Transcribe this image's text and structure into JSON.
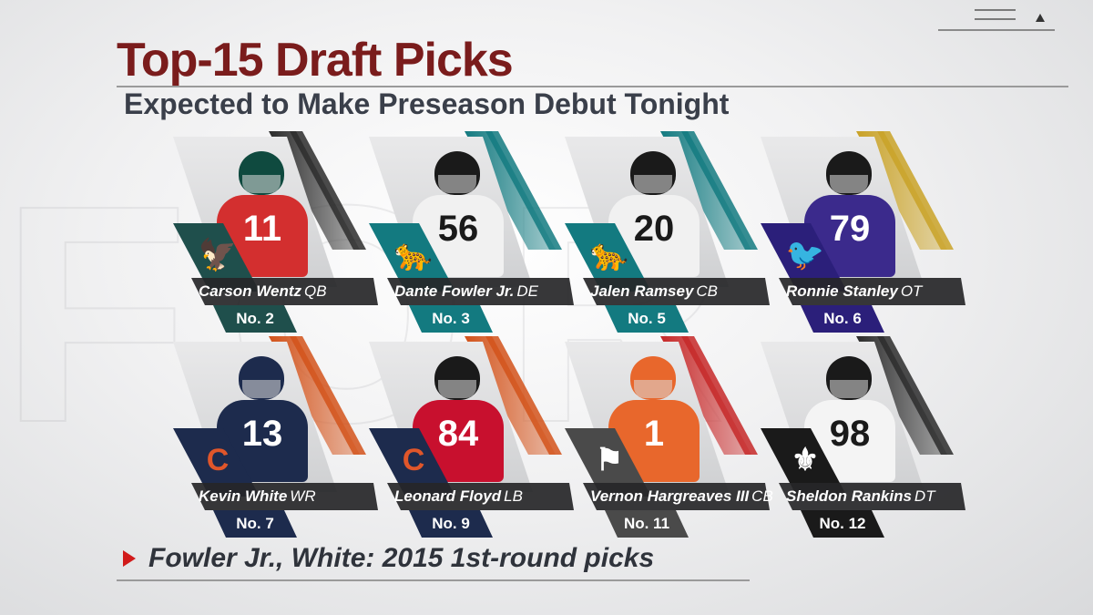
{
  "header": {
    "title": "Top-15 Draft Picks",
    "subtitle": "Expected to Make Preseason Debut Tonight"
  },
  "players": [
    {
      "first_last": "Carson Wentz",
      "position": "QB",
      "pick": "No. 2",
      "team_color": "#1f4f4c",
      "stripe_color": "#2b2b2b",
      "jersey_color": "#d32f2f",
      "helmet_color": "#0f4a3f",
      "number": "11",
      "logo_icon": "eagle-icon",
      "logo_glyph": "🦅"
    },
    {
      "first_last": "Dante Fowler Jr.",
      "position": "DE",
      "pick": "No. 3",
      "team_color": "#137a80",
      "stripe_color": "#137a80",
      "jersey_color": "#f1f1f1",
      "helmet_color": "#1a1a1a",
      "number": "56",
      "logo_icon": "jaguar-icon",
      "logo_glyph": "🐆"
    },
    {
      "first_last": "Jalen Ramsey",
      "position": "CB",
      "pick": "No. 5",
      "team_color": "#137a80",
      "stripe_color": "#137a80",
      "jersey_color": "#f1f1f1",
      "helmet_color": "#1a1a1a",
      "number": "20",
      "logo_icon": "jaguar-icon",
      "logo_glyph": "🐆"
    },
    {
      "first_last": "Ronnie Stanley",
      "position": "OT",
      "pick": "No. 6",
      "team_color": "#2b1f7a",
      "stripe_color": "#c9a227",
      "jersey_color": "#3b2a8c",
      "helmet_color": "#1a1a1a",
      "number": "79",
      "logo_icon": "raven-icon",
      "logo_glyph": "🐦"
    },
    {
      "first_last": "Kevin White",
      "position": "WR",
      "pick": "No. 7",
      "team_color": "#1d2b4d",
      "stripe_color": "#d2521a",
      "jersey_color": "#1d2b4d",
      "helmet_color": "#1d2b4d",
      "number": "13",
      "logo_icon": "bears-c-icon",
      "logo_glyph": "C"
    },
    {
      "first_last": "Leonard Floyd",
      "position": "LB",
      "pick": "No. 9",
      "team_color": "#1d2b4d",
      "stripe_color": "#d2521a",
      "jersey_color": "#c8102e",
      "helmet_color": "#1a1a1a",
      "number": "84",
      "logo_icon": "bears-c-icon",
      "logo_glyph": "C"
    },
    {
      "first_last": "Vernon Hargreaves III",
      "position": "CB",
      "pick": "No. 11",
      "team_color": "#4a4a4a",
      "stripe_color": "#c62828",
      "jersey_color": "#e8672c",
      "helmet_color": "#e8672c",
      "number": "1",
      "logo_icon": "buccaneers-flag-icon",
      "logo_glyph": "⚑"
    },
    {
      "first_last": "Sheldon Rankins",
      "position": "DT",
      "pick": "No. 12",
      "team_color": "#1a1a1a",
      "stripe_color": "#2b2b2b",
      "jersey_color": "#f4f4f4",
      "helmet_color": "#1a1a1a",
      "number": "98",
      "logo_icon": "fleur-de-lis-icon",
      "logo_glyph": "⚜"
    }
  ],
  "footer": {
    "text": "Fowler Jr., White: 2015 1st-round picks"
  },
  "colors": {
    "title": "#7a1c1c",
    "subtitle": "#3a3f4a",
    "accent_red": "#d11a1a"
  }
}
